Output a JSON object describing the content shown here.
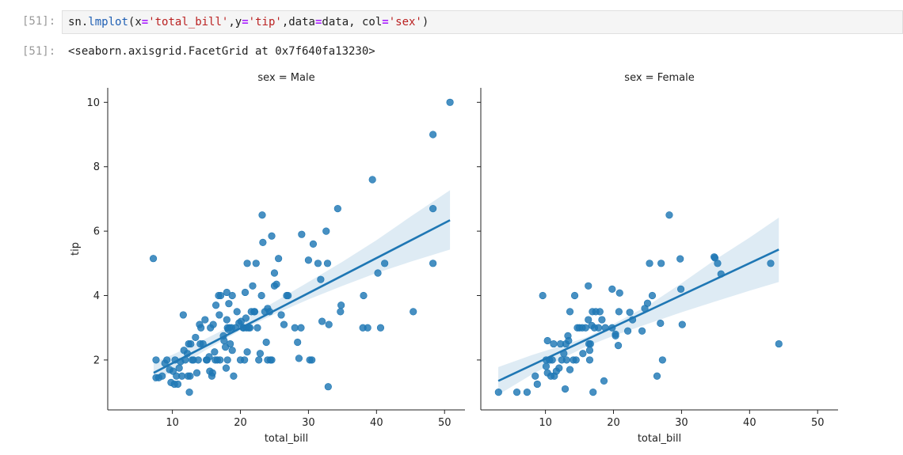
{
  "notebook": {
    "in_prompt": "[51]:",
    "out_prompt": "[51]:",
    "code": {
      "obj": "sn",
      "dot": ".",
      "func": "lmplot",
      "open": "(",
      "x_kw": "x",
      "eq": "=",
      "x_val": "'total_bill'",
      "comma": ",",
      "y_kw": "y",
      "y_val": "'tip'",
      "data_kw": "data",
      "data_val": "data",
      "comma_sp": ", ",
      "col_kw": "col",
      "col_val": "'sex'",
      "close": ")"
    },
    "output_text": "<seaborn.axisgrid.FacetGrid at 0x7f640fa13230>"
  },
  "colors": {
    "points": "#1f77b4",
    "band": "#1f77b4"
  },
  "chart_data": [
    {
      "type": "scatter",
      "title": "sex = Male",
      "xlabel": "total_bill",
      "ylabel": "tip",
      "xlim": [
        0.5,
        53
      ],
      "ylim": [
        0.45,
        10.45
      ],
      "xticks": [
        10,
        20,
        30,
        40,
        50
      ],
      "yticks": [
        2,
        4,
        6,
        8,
        10
      ],
      "grid": false,
      "regression": {
        "x0": 7.25,
        "y0": 1.6,
        "x1": 50.8,
        "y1": 6.34,
        "band": [
          [
            7.25,
            1.29,
            1.92
          ],
          [
            10,
            1.66,
            2.16
          ],
          [
            15,
            2.32,
            2.67
          ],
          [
            20,
            2.92,
            3.2
          ],
          [
            25,
            3.42,
            3.8
          ],
          [
            30,
            3.88,
            4.42
          ],
          [
            35,
            4.3,
            5.05
          ],
          [
            40,
            4.7,
            5.72
          ],
          [
            45,
            5.05,
            6.45
          ],
          [
            50.8,
            5.43,
            7.27
          ]
        ]
      },
      "points": [
        [
          7.2,
          5.15
        ],
        [
          7.6,
          2.0
        ],
        [
          7.6,
          1.45
        ],
        [
          8.0,
          1.45
        ],
        [
          8.5,
          1.5
        ],
        [
          8.9,
          1.9
        ],
        [
          9.2,
          2.0
        ],
        [
          9.6,
          1.7
        ],
        [
          9.8,
          1.3
        ],
        [
          10.1,
          1.65
        ],
        [
          10.3,
          1.25
        ],
        [
          10.4,
          2.0
        ],
        [
          10.6,
          1.5
        ],
        [
          10.8,
          1.25
        ],
        [
          11.0,
          1.75
        ],
        [
          11.2,
          1.95
        ],
        [
          11.4,
          1.5
        ],
        [
          11.6,
          3.4
        ],
        [
          11.7,
          2.3
        ],
        [
          11.9,
          2.0
        ],
        [
          12.2,
          2.2
        ],
        [
          12.3,
          1.5
        ],
        [
          12.4,
          2.5
        ],
        [
          12.5,
          1.0
        ],
        [
          12.6,
          1.5
        ],
        [
          12.7,
          2.5
        ],
        [
          12.9,
          2.0
        ],
        [
          13.1,
          2.0
        ],
        [
          13.4,
          2.7
        ],
        [
          13.6,
          1.6
        ],
        [
          13.8,
          2.0
        ],
        [
          14.0,
          3.1
        ],
        [
          14.1,
          2.5
        ],
        [
          14.2,
          3.0
        ],
        [
          14.5,
          2.5
        ],
        [
          14.8,
          3.25
        ],
        [
          15.0,
          2.0
        ],
        [
          15.1,
          2.0
        ],
        [
          15.4,
          2.1
        ],
        [
          15.5,
          1.65
        ],
        [
          15.6,
          3.0
        ],
        [
          15.8,
          1.5
        ],
        [
          15.9,
          1.6
        ],
        [
          16.0,
          3.1
        ],
        [
          16.2,
          2.25
        ],
        [
          16.3,
          2.0
        ],
        [
          16.4,
          3.7
        ],
        [
          16.6,
          2.0
        ],
        [
          16.8,
          4.0
        ],
        [
          16.9,
          3.4
        ],
        [
          17.0,
          2.0
        ],
        [
          17.1,
          4.0
        ],
        [
          17.5,
          2.75
        ],
        [
          17.6,
          2.6
        ],
        [
          17.8,
          2.4
        ],
        [
          17.9,
          1.75
        ],
        [
          18.0,
          4.1
        ],
        [
          18.0,
          3.25
        ],
        [
          18.1,
          3.0
        ],
        [
          18.1,
          2.0
        ],
        [
          18.2,
          2.95
        ],
        [
          18.3,
          3.75
        ],
        [
          18.4,
          3.0
        ],
        [
          18.5,
          2.5
        ],
        [
          18.7,
          3.0
        ],
        [
          18.8,
          4.0
        ],
        [
          18.8,
          2.3
        ],
        [
          19.0,
          1.5
        ],
        [
          19.3,
          3.0
        ],
        [
          19.5,
          3.5
        ],
        [
          19.8,
          3.15
        ],
        [
          20.0,
          2.0
        ],
        [
          20.1,
          3.2
        ],
        [
          20.4,
          3.0
        ],
        [
          20.5,
          3.0
        ],
        [
          20.6,
          2.0
        ],
        [
          20.7,
          4.1
        ],
        [
          20.8,
          3.3
        ],
        [
          20.9,
          3.0
        ],
        [
          21.0,
          5.0
        ],
        [
          21.0,
          2.25
        ],
        [
          21.2,
          3.0
        ],
        [
          21.4,
          3.0
        ],
        [
          21.6,
          3.5
        ],
        [
          21.8,
          4.3
        ],
        [
          22.0,
          3.5
        ],
        [
          22.1,
          3.5
        ],
        [
          22.3,
          5.0
        ],
        [
          22.5,
          3.0
        ],
        [
          22.7,
          2.0
        ],
        [
          22.9,
          2.2
        ],
        [
          23.1,
          4.0
        ],
        [
          23.2,
          6.5
        ],
        [
          23.3,
          5.65
        ],
        [
          23.6,
          3.5
        ],
        [
          23.8,
          2.55
        ],
        [
          24.0,
          3.6
        ],
        [
          24.0,
          2.0
        ],
        [
          24.3,
          3.5
        ],
        [
          24.4,
          2.0
        ],
        [
          24.6,
          5.85
        ],
        [
          24.6,
          2.0
        ],
        [
          25.0,
          4.3
        ],
        [
          25.0,
          4.7
        ],
        [
          25.3,
          4.35
        ],
        [
          25.6,
          5.15
        ],
        [
          26.0,
          3.4
        ],
        [
          26.4,
          3.1
        ],
        [
          26.8,
          4.0
        ],
        [
          27.0,
          4.0
        ],
        [
          28.0,
          3.0
        ],
        [
          28.4,
          2.55
        ],
        [
          28.6,
          2.05
        ],
        [
          28.9,
          3.0
        ],
        [
          29.0,
          5.9
        ],
        [
          30.0,
          5.1
        ],
        [
          30.2,
          2.0
        ],
        [
          30.5,
          2.0
        ],
        [
          30.7,
          5.6
        ],
        [
          31.4,
          5.0
        ],
        [
          31.8,
          4.5
        ],
        [
          32.0,
          3.2
        ],
        [
          32.6,
          6.0
        ],
        [
          32.8,
          5.0
        ],
        [
          32.9,
          1.17
        ],
        [
          33.0,
          3.1
        ],
        [
          34.3,
          6.7
        ],
        [
          34.7,
          3.5
        ],
        [
          34.8,
          3.7
        ],
        [
          38.0,
          3.0
        ],
        [
          38.1,
          4.0
        ],
        [
          38.7,
          3.0
        ],
        [
          39.4,
          7.6
        ],
        [
          40.2,
          4.7
        ],
        [
          40.6,
          3.0
        ],
        [
          41.2,
          5.0
        ],
        [
          45.4,
          3.5
        ],
        [
          48.3,
          5.0
        ],
        [
          48.3,
          9.0
        ],
        [
          48.3,
          6.7
        ],
        [
          50.8,
          10.0
        ]
      ]
    },
    {
      "type": "scatter",
      "title": "sex = Female",
      "xlabel": "total_bill",
      "ylabel": "",
      "xlim": [
        0.5,
        53
      ],
      "ylim": [
        0.45,
        10.45
      ],
      "xticks": [
        10,
        20,
        30,
        40,
        50
      ],
      "yticks": [
        2,
        4,
        6,
        8,
        10
      ],
      "grid": false,
      "regression": {
        "x0": 3.07,
        "y0": 1.35,
        "x1": 44.3,
        "y1": 5.43,
        "band": [
          [
            3.07,
            0.92,
            1.78
          ],
          [
            8,
            1.55,
            2.15
          ],
          [
            12,
            2.0,
            2.42
          ],
          [
            16,
            2.42,
            2.7
          ],
          [
            20,
            2.75,
            3.12
          ],
          [
            25,
            3.12,
            3.68
          ],
          [
            30,
            3.48,
            4.38
          ],
          [
            35,
            3.82,
            5.12
          ],
          [
            40,
            4.15,
            5.8
          ],
          [
            44.3,
            4.42,
            6.42
          ]
        ]
      },
      "points": [
        [
          3.1,
          1.0
        ],
        [
          5.8,
          1.0
        ],
        [
          7.3,
          1.0
        ],
        [
          8.5,
          1.5
        ],
        [
          8.8,
          1.25
        ],
        [
          9.6,
          4.0
        ],
        [
          10.1,
          1.8
        ],
        [
          10.1,
          2.0
        ],
        [
          10.3,
          1.6
        ],
        [
          10.3,
          2.6
        ],
        [
          10.6,
          2.0
        ],
        [
          10.8,
          1.5
        ],
        [
          11.0,
          2.0
        ],
        [
          11.2,
          2.5
        ],
        [
          11.3,
          1.5
        ],
        [
          11.6,
          1.65
        ],
        [
          12.0,
          1.75
        ],
        [
          12.2,
          2.5
        ],
        [
          12.4,
          2.0
        ],
        [
          12.7,
          2.2
        ],
        [
          12.9,
          1.1
        ],
        [
          13.0,
          2.5
        ],
        [
          13.1,
          2.0
        ],
        [
          13.3,
          2.75
        ],
        [
          13.4,
          2.6
        ],
        [
          13.6,
          3.5
        ],
        [
          13.6,
          1.7
        ],
        [
          14.1,
          2.0
        ],
        [
          14.3,
          4.0
        ],
        [
          14.5,
          2.0
        ],
        [
          14.7,
          3.0
        ],
        [
          15.0,
          3.0
        ],
        [
          15.4,
          3.0
        ],
        [
          15.5,
          2.2
        ],
        [
          15.9,
          3.0
        ],
        [
          16.3,
          4.3
        ],
        [
          16.3,
          3.25
        ],
        [
          16.4,
          2.5
        ],
        [
          16.5,
          2.0
        ],
        [
          16.5,
          2.3
        ],
        [
          16.6,
          2.5
        ],
        [
          16.8,
          3.07
        ],
        [
          16.9,
          3.5
        ],
        [
          17.0,
          1.0
        ],
        [
          17.2,
          3.0
        ],
        [
          17.4,
          3.5
        ],
        [
          17.8,
          3.0
        ],
        [
          18.0,
          3.5
        ],
        [
          18.3,
          3.25
        ],
        [
          18.6,
          1.35
        ],
        [
          18.8,
          3.0
        ],
        [
          19.8,
          3.0
        ],
        [
          19.8,
          4.2
        ],
        [
          20.3,
          2.8
        ],
        [
          20.3,
          2.75
        ],
        [
          20.7,
          2.45
        ],
        [
          20.8,
          3.5
        ],
        [
          20.9,
          4.08
        ],
        [
          22.1,
          2.9
        ],
        [
          22.4,
          3.48
        ],
        [
          22.8,
          3.25
        ],
        [
          24.2,
          2.9
        ],
        [
          24.6,
          3.6
        ],
        [
          25.0,
          3.76
        ],
        [
          25.3,
          5.0
        ],
        [
          25.7,
          4.0
        ],
        [
          26.4,
          1.5
        ],
        [
          26.9,
          3.14
        ],
        [
          27.0,
          5.0
        ],
        [
          27.2,
          2.0
        ],
        [
          28.2,
          6.5
        ],
        [
          29.8,
          5.14
        ],
        [
          29.9,
          4.2
        ],
        [
          30.1,
          3.1
        ],
        [
          34.8,
          5.2
        ],
        [
          34.9,
          5.17
        ],
        [
          35.3,
          5.0
        ],
        [
          35.8,
          4.67
        ],
        [
          43.1,
          5.0
        ],
        [
          44.3,
          2.5
        ]
      ]
    }
  ]
}
